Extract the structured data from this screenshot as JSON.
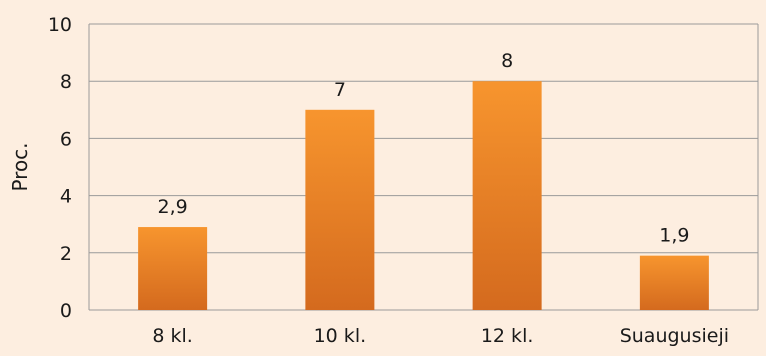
{
  "chart_data": {
    "type": "bar",
    "categories": [
      "8 kl.",
      "10 kl.",
      "12 kl.",
      "Suaugusieji"
    ],
    "values": [
      2.9,
      7,
      8,
      1.9
    ],
    "value_labels": [
      "2,9",
      "7",
      "8",
      "1,9"
    ],
    "ylabel": "Proc.",
    "xlabel": "",
    "ylim": [
      0,
      10
    ],
    "yticks": [
      0,
      2,
      4,
      6,
      8,
      10
    ],
    "grid": true,
    "legend": "none"
  },
  "colors": {
    "background": "#fdeee0",
    "bar_top": "#f7952e",
    "bar_bottom": "#d46a1e",
    "grid": "#9a9a9a",
    "text": "#1a1a1a"
  }
}
